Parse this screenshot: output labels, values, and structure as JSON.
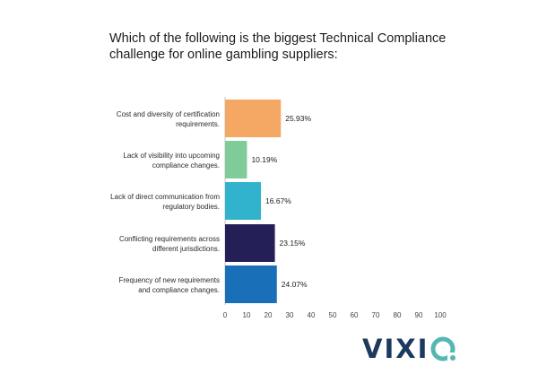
{
  "chart_data": {
    "type": "bar",
    "orientation": "horizontal",
    "title_lines": [
      "Which of the following is the biggest Technical Compliance",
      "challenge for online gambling suppliers:"
    ],
    "categories": [
      [
        "Cost and diversity of certification",
        "requirements."
      ],
      [
        "Lack of visibility into upcoming",
        "compliance changes."
      ],
      [
        "Lack of direct communication from",
        "regulatory bodies."
      ],
      [
        "Conflicting requirements across",
        "different jurisdictions."
      ],
      [
        "Frequency of new requirements",
        "and compliance changes."
      ]
    ],
    "values": [
      25.93,
      10.19,
      16.67,
      23.15,
      24.07
    ],
    "data_labels": [
      "25.93%",
      "10.19%",
      "16.67%",
      "23.15%",
      "24.07%"
    ],
    "colors": [
      "#f4a863",
      "#7fcb99",
      "#32b3cd",
      "#251f57",
      "#1a70b8"
    ],
    "xlim": [
      0,
      100
    ],
    "xticks": [
      0,
      10,
      20,
      30,
      40,
      50,
      60,
      70,
      80,
      90,
      100
    ],
    "grid": false,
    "legend": "none"
  },
  "logo": {
    "text": "VIXI",
    "mark": "o-ring-icon"
  }
}
